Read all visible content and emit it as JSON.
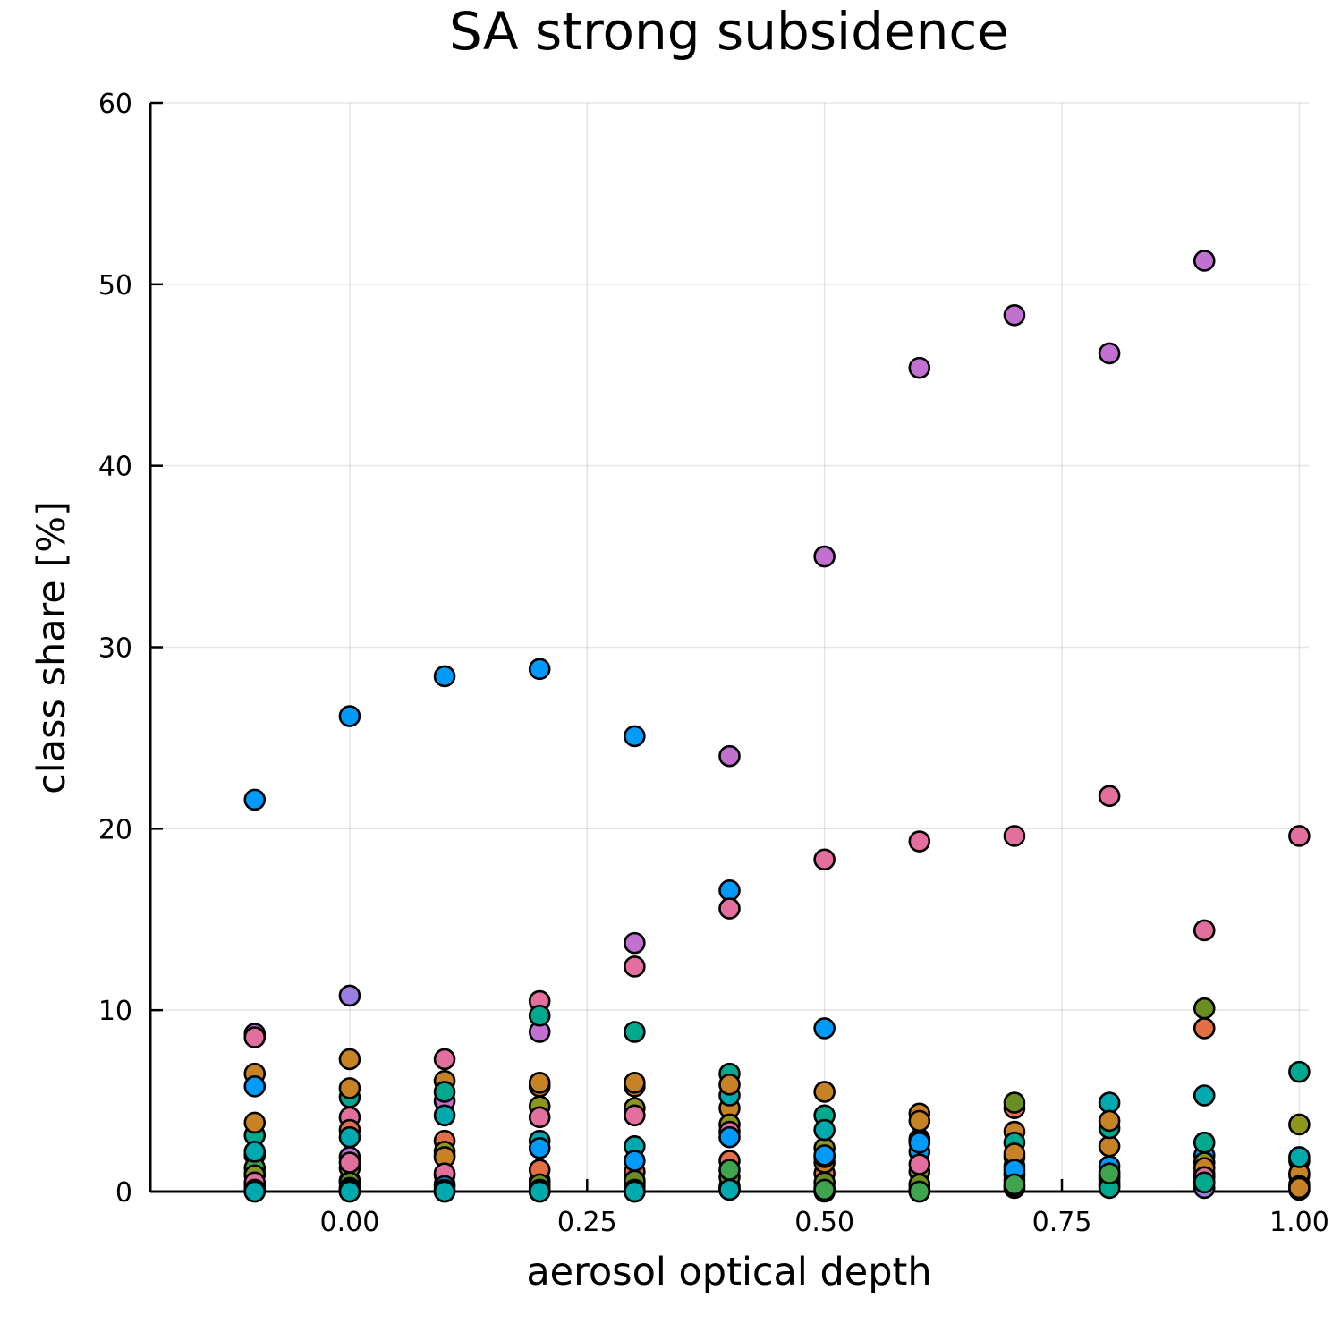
{
  "chart_data": {
    "type": "scatter",
    "title": "SA strong subsidence",
    "xlabel": "aerosol optical depth",
    "ylabel": "class share [%]",
    "xlim": [
      -0.21,
      1.01
    ],
    "ylim": [
      0,
      60
    ],
    "xticks": [
      0.0,
      0.25,
      0.5,
      0.75,
      1.0
    ],
    "xtick_labels": [
      "0.00",
      "0.25",
      "0.50",
      "0.75",
      "1.00"
    ],
    "yticks": [
      0,
      10,
      20,
      30,
      40,
      50,
      60
    ],
    "ytick_labels": [
      "0",
      "10",
      "20",
      "30",
      "40",
      "50",
      "60"
    ],
    "grid": true,
    "legend": "none",
    "series": [
      {
        "color": "#009AFA",
        "x": [
          -0.1,
          0.0,
          0.1,
          0.2,
          0.3,
          0.4,
          0.5,
          0.6,
          0.7,
          0.8,
          0.9,
          1.0
        ],
        "y": [
          21.6,
          26.2,
          28.4,
          28.8,
          25.1,
          16.6,
          9.0,
          2.2,
          1.0,
          1.1,
          2.0,
          1.7
        ]
      },
      {
        "color": "#C271D2",
        "x": [
          -0.1,
          0.0,
          0.1,
          0.2,
          0.3,
          0.4,
          0.5,
          0.6,
          0.7,
          0.8,
          0.9
        ],
        "y": [
          8.7,
          1.9,
          5.0,
          8.8,
          13.7,
          24.0,
          35.0,
          45.4,
          48.3,
          46.2,
          51.3
        ]
      },
      {
        "color": "#E26F9E",
        "x": [
          -0.1,
          0.0,
          0.1,
          0.2,
          0.3,
          0.4,
          0.5,
          0.6,
          0.7,
          0.8,
          0.9,
          1.0
        ],
        "y": [
          8.5,
          4.1,
          7.3,
          10.5,
          12.4,
          15.6,
          18.3,
          19.3,
          19.6,
          21.8,
          14.4,
          19.6
        ]
      },
      {
        "color": "#9B7FE0",
        "x": [
          -0.1,
          0.0,
          0.1,
          0.2,
          0.3,
          0.4,
          0.5,
          0.6,
          0.7,
          0.8,
          0.9,
          1.0
        ],
        "y": [
          2.0,
          10.8,
          2.0,
          0.6,
          0.5,
          0.3,
          0.2,
          0.1,
          0.2,
          0.3,
          0.2,
          0.1
        ]
      },
      {
        "color": "#E26F46",
        "x": [
          -0.1,
          0.0,
          0.1,
          0.2,
          0.3,
          0.4,
          0.5,
          0.6,
          0.7,
          0.8,
          0.9,
          1.0
        ],
        "y": [
          1.0,
          3.4,
          2.8,
          1.2,
          1.1,
          1.7,
          1.0,
          0.4,
          4.6,
          0.9,
          9.0,
          0.9
        ]
      },
      {
        "color": "#3EA44E",
        "x": [
          -0.1,
          0.0,
          0.1,
          0.2,
          0.3,
          0.4,
          0.5,
          0.6,
          0.7,
          0.8,
          0.9,
          1.0
        ],
        "y": [
          1.3,
          0.6,
          0.4,
          0.2,
          0.3,
          0.2,
          0.1,
          0.1,
          1.4,
          0.8,
          1.0,
          0.4
        ]
      },
      {
        "color": "#C68225",
        "x": [
          -0.1,
          0.0,
          0.1,
          0.2,
          0.3,
          0.4,
          0.5,
          0.6,
          0.7,
          0.8,
          0.9,
          1.0
        ],
        "y": [
          6.5,
          7.3,
          6.1,
          5.8,
          5.8,
          4.6,
          5.5,
          4.3,
          3.3,
          2.5,
          0.5,
          1.0
        ]
      },
      {
        "color": "#00A98D",
        "x": [
          -0.1,
          0.0,
          0.1,
          0.2,
          0.3,
          0.4,
          0.5,
          0.6,
          0.7,
          0.8,
          0.9,
          1.0
        ],
        "y": [
          3.1,
          5.2,
          5.5,
          9.7,
          8.8,
          6.5,
          4.2,
          2.9,
          2.7,
          3.5,
          2.7,
          6.6
        ]
      },
      {
        "color": "#8E971D",
        "x": [
          -0.1,
          0.0,
          0.1,
          0.2,
          0.3,
          0.4,
          0.5,
          0.6,
          0.7,
          0.8,
          0.9,
          1.0
        ],
        "y": [
          0.9,
          1.3,
          2.2,
          4.7,
          4.6,
          3.7,
          2.4,
          1.1,
          0.6,
          0.7,
          1.6,
          3.7
        ]
      },
      {
        "color": "#00A9AD",
        "x": [
          -0.1,
          0.0,
          0.1,
          0.2,
          0.3,
          0.4,
          0.5,
          0.6,
          0.7,
          0.8,
          0.9,
          1.0
        ],
        "y": [
          2.2,
          3.0,
          4.2,
          2.8,
          2.5,
          5.3,
          3.4,
          2.8,
          1.9,
          4.9,
          5.3,
          1.9
        ]
      },
      {
        "color": "#6B8E23",
        "x": [
          -0.1,
          0.0,
          0.1,
          0.2,
          0.3,
          0.4,
          0.5,
          0.6,
          0.7,
          0.8,
          0.9,
          1.0
        ],
        "y": [
          0.3,
          0.5,
          0.9,
          0.4,
          0.6,
          0.8,
          0.5,
          0.4,
          4.9,
          0.5,
          10.1,
          0.3
        ]
      },
      {
        "color": "#C68225",
        "x": [
          -0.1,
          0.0,
          0.1,
          0.2,
          0.3,
          0.4,
          0.5,
          0.6,
          0.7,
          0.8,
          0.9,
          1.0
        ],
        "y": [
          3.8,
          5.7,
          1.9,
          6.0,
          6.0,
          5.9,
          1.6,
          3.9,
          2.1,
          3.9,
          1.3,
          0.2
        ]
      },
      {
        "color": "#E26F9E",
        "x": [
          -0.1,
          0.0,
          0.1,
          0.2,
          0.3,
          0.4,
          0.5,
          0.6,
          0.7,
          0.8,
          0.9
        ],
        "y": [
          0.5,
          1.6,
          1.0,
          4.1,
          4.2,
          3.3,
          1.9,
          1.5,
          0.9,
          0.4,
          0.8
        ]
      },
      {
        "color": "#009AFA",
        "x": [
          -0.1,
          0.0,
          0.1,
          0.2,
          0.3,
          0.4,
          0.5,
          0.6,
          0.7,
          0.8
        ],
        "y": [
          5.8,
          0.2,
          0.3,
          2.4,
          1.7,
          3.0,
          2.0,
          2.7,
          1.2,
          1.4
        ]
      },
      {
        "color": "#00A98D",
        "x": [
          -0.1,
          0.0,
          0.1,
          0.2,
          0.3,
          0.4,
          0.5,
          0.6,
          0.7,
          0.8,
          0.9
        ],
        "y": [
          0.0,
          0.0,
          0.0,
          0.0,
          0.1,
          0.1,
          0.0,
          0.0,
          0.3,
          0.2,
          0.5
        ]
      },
      {
        "color": "#3EA44E",
        "x": [
          -0.1,
          0.0,
          0.1,
          0.2,
          0.3,
          0.4,
          0.5,
          0.6,
          0.7,
          0.8
        ],
        "y": [
          0.1,
          0.1,
          0.1,
          0.1,
          0.0,
          1.2,
          0.1,
          0.0,
          0.4,
          1.0
        ]
      },
      {
        "color": "#00A9AD",
        "x": [
          -0.1,
          0.0,
          0.1,
          0.2,
          0.3,
          0.4
        ],
        "y": [
          0.0,
          0.0,
          0.0,
          0.0,
          0.0,
          0.1
        ]
      }
    ]
  }
}
